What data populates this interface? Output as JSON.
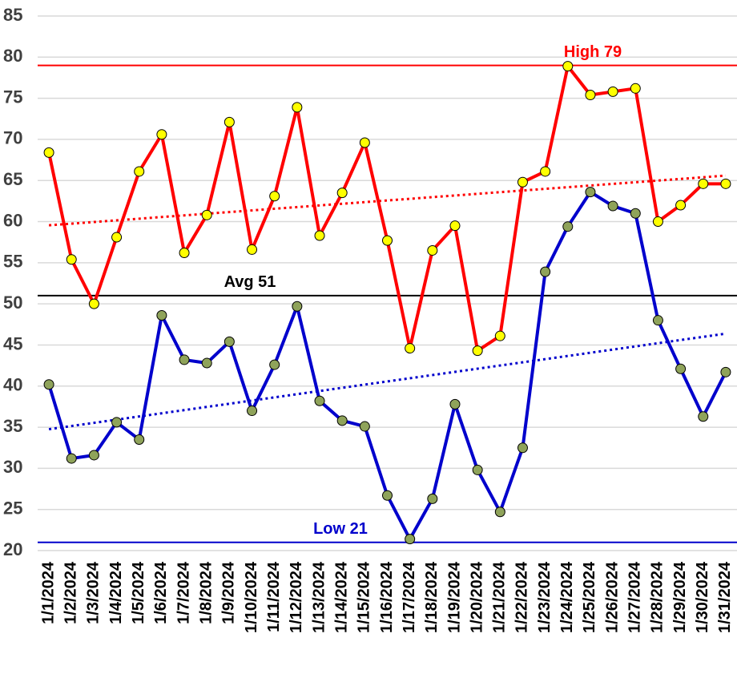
{
  "chart_data": {
    "type": "line",
    "categories": [
      "1/1/2024",
      "1/2/2024",
      "1/3/2024",
      "1/4/2024",
      "1/5/2024",
      "1/6/2024",
      "1/7/2024",
      "1/8/2024",
      "1/9/2024",
      "1/10/2024",
      "1/11/2024",
      "1/12/2024",
      "1/13/2024",
      "1/14/2024",
      "1/15/2024",
      "1/16/2024",
      "1/17/2024",
      "1/18/2024",
      "1/19/2024",
      "1/20/2024",
      "1/21/2024",
      "1/22/2024",
      "1/23/2024",
      "1/24/2024",
      "1/25/2024",
      "1/26/2024",
      "1/27/2024",
      "1/28/2024",
      "1/29/2024",
      "1/30/2024",
      "1/31/2024"
    ],
    "series": [
      {
        "color": "#ff0000",
        "marker_color": "#ffff00",
        "trendline": true,
        "values": [
          68.4,
          55.4,
          50.0,
          58.1,
          66.1,
          70.6,
          56.2,
          60.8,
          72.1,
          56.6,
          63.1,
          73.9,
          58.3,
          63.5,
          69.6,
          57.7,
          44.6,
          56.5,
          59.5,
          44.3,
          46.1,
          64.8,
          66.1,
          78.9,
          75.4,
          75.8,
          76.2,
          60.0,
          62.0,
          64.6,
          64.6
        ]
      },
      {
        "color": "#0000cc",
        "marker_color": "#8fa35a",
        "trendline": true,
        "values": [
          40.2,
          31.2,
          31.6,
          35.6,
          33.5,
          48.6,
          43.2,
          42.8,
          45.4,
          37.0,
          42.6,
          49.7,
          38.2,
          35.8,
          35.1,
          26.7,
          21.4,
          26.3,
          37.8,
          29.8,
          24.7,
          32.5,
          53.9,
          59.4,
          63.6,
          61.9,
          61.0,
          48.0,
          42.1,
          36.3,
          41.7
        ]
      }
    ],
    "reference_lines": [
      {
        "label": "High 79",
        "value": 79,
        "color": "#ff0000"
      },
      {
        "label": "Avg 51",
        "value": 51,
        "color": "#000000"
      },
      {
        "label": "Low 21",
        "value": 21,
        "color": "#0000cc"
      }
    ],
    "ylim": [
      20,
      85
    ],
    "yticks": [
      20,
      25,
      30,
      35,
      40,
      45,
      50,
      55,
      60,
      65,
      70,
      75,
      80,
      85
    ],
    "grid": true
  }
}
